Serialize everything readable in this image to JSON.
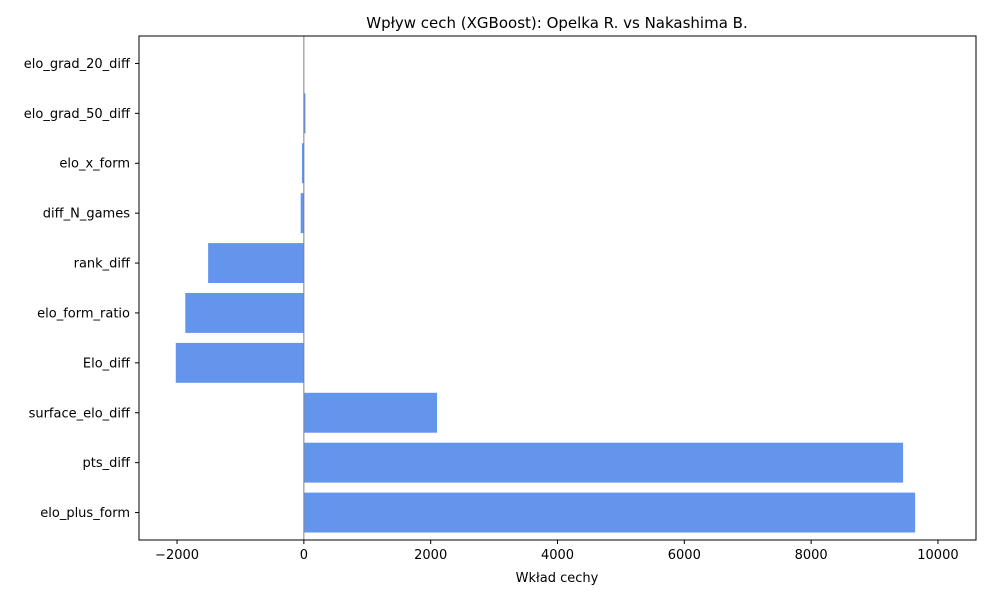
{
  "chart_data": {
    "type": "bar",
    "orientation": "horizontal",
    "title": "Wpływ cech (XGBoost): Opelka R. vs Nakashima B.",
    "xlabel": "Wkład cechy",
    "ylabel": "",
    "xlim": [
      -2600,
      10600
    ],
    "xticks": [
      -2000,
      0,
      2000,
      4000,
      6000,
      8000,
      10000
    ],
    "xtick_labels": [
      "−2000",
      "0",
      "2000",
      "4000",
      "6000",
      "8000",
      "10000"
    ],
    "bar_color": "#6495ED",
    "zero_line": true,
    "categories": [
      "elo_plus_form",
      "pts_diff",
      "surface_elo_diff",
      "Elo_diff",
      "elo_form_ratio",
      "rank_diff",
      "diff_N_games",
      "elo_x_form",
      "elo_grad_50_diff",
      "elo_grad_20_diff"
    ],
    "values": [
      9640,
      9450,
      2100,
      -2020,
      -1870,
      -1510,
      -50,
      -30,
      25,
      0
    ]
  }
}
